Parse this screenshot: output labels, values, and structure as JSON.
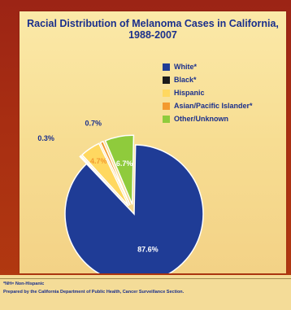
{
  "chart_data": {
    "type": "pie",
    "title": "Racial Distribution of Melanoma Cases in California, 1988-2007",
    "slices": [
      {
        "name": "White*",
        "value": 87.6,
        "label": "87.6%",
        "color": "#1f3c96"
      },
      {
        "name": "Black*",
        "value": 0.3,
        "label": "0.3%",
        "color": "#1b1b1b"
      },
      {
        "name": "Hispanic",
        "value": 4.7,
        "label": "4.7%",
        "color": "#ffd860"
      },
      {
        "name": "Asian/Pacific Islander*",
        "value": 0.7,
        "label": "0.7%",
        "color": "#f39a2f"
      },
      {
        "name": "Other/Unknown",
        "value": 6.7,
        "label": "6.7%",
        "color": "#8fcb3c"
      }
    ],
    "legend_position": "right"
  },
  "footnotes": {
    "nh": "*NH= Non-Hispanic",
    "source": "Prepared by the California Department of Public Health, Cancer Surveillance Section."
  }
}
